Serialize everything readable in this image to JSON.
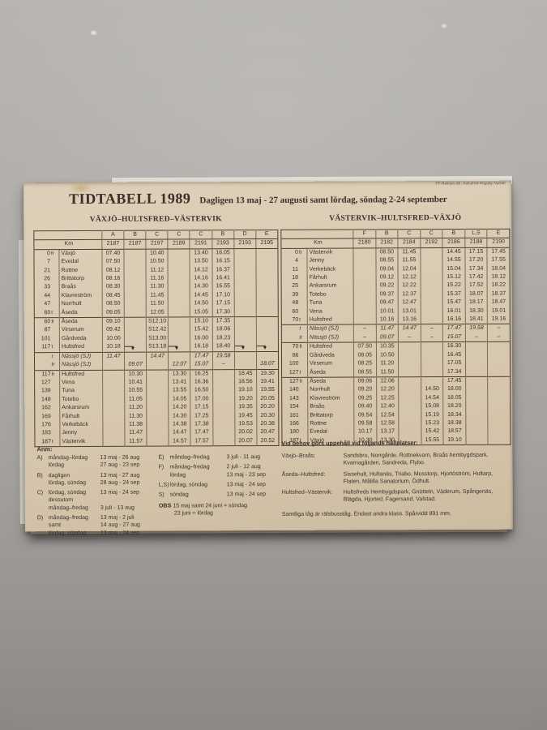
{
  "card": {
    "credit": "FF-Reklam AB, Hultsfred-Högsby Nyckel",
    "title": "TIDTABELL 1989",
    "subtitle": "Dagligen 13 maj - 27 augusti samt lördag, söndag 2-24 september"
  },
  "left_table": {
    "title": "VÄXJÖ–HULTSFRED–VÄSTERVIK",
    "km_label": "Km",
    "letters": [
      "A",
      "B",
      "C",
      "C",
      "C",
      "B",
      "D",
      "E"
    ],
    "trains": [
      "2187",
      "2187",
      "2197",
      "2189",
      "2191",
      "2193",
      "2193",
      "2195"
    ],
    "sections": [
      {
        "italic": false,
        "rows": [
          {
            "km": "0",
            "ft": "fr",
            "name": "Växjö",
            "times": [
              "07.40",
              "",
              "10.40",
              "",
              "13.40",
              "16.05",
              "",
              ""
            ]
          },
          {
            "km": "7",
            "ft": "",
            "name": "Evedal",
            "times": [
              "07.50",
              "",
              "10.50",
              "",
              "13.50",
              "16.15",
              "",
              ""
            ]
          },
          {
            "km": "21",
            "ft": "",
            "name": "Rottne",
            "times": [
              "08.12",
              "",
              "11.12",
              "",
              "14.12",
              "16.37",
              "",
              ""
            ]
          },
          {
            "km": "26",
            "ft": "",
            "name": "Brittatorp",
            "times": [
              "08.16",
              "",
              "11.16",
              "",
              "14.16",
              "16.41",
              "",
              ""
            ]
          },
          {
            "km": "33",
            "ft": "",
            "name": "Braås",
            "times": [
              "08.30",
              "",
              "11.30",
              "",
              "14.30",
              "16.55",
              "",
              ""
            ]
          },
          {
            "km": "44",
            "ft": "",
            "name": "Klavreström",
            "times": [
              "08.45",
              "",
              "11.45",
              "",
              "14.45",
              "17.10",
              "",
              ""
            ]
          },
          {
            "km": "47",
            "ft": "",
            "name": "Norrhult",
            "times": [
              "08.50",
              "",
              "11.50",
              "",
              "14.50",
              "17.15",
              "",
              ""
            ]
          },
          {
            "km": "60",
            "ft": "t",
            "name": "Åseda",
            "times": [
              "09.05",
              "",
              "12.05",
              "",
              "15.05",
              "17.30",
              "",
              ""
            ]
          }
        ]
      },
      {
        "italic": false,
        "rows": [
          {
            "km": "60",
            "ft": "fr",
            "name": "Åseda",
            "times": [
              "09.10",
              "",
              "S12.10",
              "",
              "15.10",
              "17.35",
              "",
              ""
            ]
          },
          {
            "km": "87",
            "ft": "",
            "name": "Virserum",
            "times": [
              "09.42",
              "",
              "S12.42",
              "",
              "15.42",
              "18.06",
              "",
              ""
            ]
          },
          {
            "km": "101",
            "ft": "",
            "name": "Gårdveda",
            "times": [
              "10.00",
              "",
              "S13.00",
              "",
              "16.00",
              "18.23",
              "",
              ""
            ]
          },
          {
            "km": "117",
            "ft": "t",
            "name": "Hultsfred",
            "times": [
              "10.18",
              "ARW",
              "S13.18",
              "ARW",
              "16.18",
              "18.40",
              "ARW",
              "ARW"
            ]
          }
        ]
      },
      {
        "italic": true,
        "rows": [
          {
            "km": "",
            "ft": "t",
            "name": "Nässjö (SJ)",
            "times": [
              "11.47",
              "",
              "14.47",
              "",
              "17.47",
              "19.58",
              "",
              ""
            ]
          },
          {
            "km": "",
            "ft": "fr",
            "name": "Nässjö (SJ)",
            "times": [
              "",
              "09.07",
              "",
              "12.07",
              "15.07",
              "–",
              "",
              "18.07"
            ]
          }
        ]
      },
      {
        "italic": false,
        "rows": [
          {
            "km": "117",
            "ft": "fr",
            "name": "Hultsfred",
            "times": [
              "",
              "10.30",
              "",
              "13.30",
              "16.25",
              "",
              "18.45",
              "19.30"
            ]
          },
          {
            "km": "127",
            "ft": "",
            "name": "Vena",
            "times": [
              "",
              "10.41",
              "",
              "13.41",
              "16.36",
              "",
              "18.56",
              "19.41"
            ]
          },
          {
            "km": "139",
            "ft": "",
            "name": "Tuna",
            "times": [
              "",
              "10.55",
              "",
              "13.55",
              "16.50",
              "",
              "19.10",
              "19.55"
            ]
          },
          {
            "km": "148",
            "ft": "",
            "name": "Totebo",
            "times": [
              "",
              "11.05",
              "",
              "14.05",
              "17.00",
              "",
              "19.20",
              "20.05"
            ]
          },
          {
            "km": "162",
            "ft": "",
            "name": "Ankarsrum",
            "times": [
              "",
              "11.20",
              "",
              "14.20",
              "17.15",
              "",
              "19.35",
              "20.20"
            ]
          },
          {
            "km": "169",
            "ft": "",
            "name": "Fårhult",
            "times": [
              "",
              "11.30",
              "",
              "14.30",
              "17.25",
              "",
              "19.45",
              "20.30"
            ]
          },
          {
            "km": "176",
            "ft": "",
            "name": "Verkebäck",
            "times": [
              "",
              "11.38",
              "",
              "14.38",
              "17.38",
              "",
              "19.53",
              "20.38"
            ]
          },
          {
            "km": "183",
            "ft": "",
            "name": "Jenny",
            "times": [
              "",
              "11.47",
              "",
              "14.47",
              "17.47",
              "",
              "20.02",
              "20.47"
            ]
          },
          {
            "km": "187",
            "ft": "t",
            "name": "Västervik",
            "times": [
              "",
              "11.57",
              "",
              "14.57",
              "17.57",
              "",
              "20.07",
              "20.52"
            ]
          }
        ]
      }
    ]
  },
  "right_table": {
    "title": "VÄSTERVIK–HULTSFRED–VÄXJÖ",
    "km_label": "Km",
    "letters": [
      "F",
      "B",
      "C",
      "C",
      "B",
      "L,S",
      "E"
    ],
    "trains": [
      "2180",
      "2182",
      "2184",
      "2192",
      "2186",
      "2188",
      "2190"
    ],
    "sections": [
      {
        "italic": false,
        "rows": [
          {
            "km": "0",
            "ft": "fr",
            "name": "Västervik",
            "times": [
              "",
              "08.50",
              "11.45",
              "",
              "14.45",
              "17.15",
              "17.45"
            ]
          },
          {
            "km": "4",
            "ft": "",
            "name": "Jenny",
            "times": [
              "",
              "08.55",
              "11.55",
              "",
              "14.55",
              "17.20",
              "17.55"
            ]
          },
          {
            "km": "11",
            "ft": "",
            "name": "Verkebäck",
            "times": [
              "",
              "09.04",
              "12.04",
              "",
              "15.04",
              "17.34",
              "18.04"
            ]
          },
          {
            "km": "18",
            "ft": "",
            "name": "Fårhult",
            "times": [
              "",
              "09.12",
              "12.12",
              "",
              "15.12",
              "17.42",
              "18.12"
            ]
          },
          {
            "km": "25",
            "ft": "",
            "name": "Ankarsrum",
            "times": [
              "",
              "09.22",
              "12.22",
              "",
              "15.22",
              "17.52",
              "18.22"
            ]
          },
          {
            "km": "39",
            "ft": "",
            "name": "Totebo",
            "times": [
              "",
              "09.37",
              "12.37",
              "",
              "15.37",
              "18.07",
              "18.37"
            ]
          },
          {
            "km": "48",
            "ft": "",
            "name": "Tuna",
            "times": [
              "",
              "09.47",
              "12.47",
              "",
              "15.47",
              "18.17",
              "18.47"
            ]
          },
          {
            "km": "60",
            "ft": "",
            "name": "Vena",
            "times": [
              "",
              "10.01",
              "13.01",
              "",
              "16.01",
              "18.30",
              "19.01"
            ]
          },
          {
            "km": "70",
            "ft": "t",
            "name": "Hultsfred",
            "times": [
              "",
              "10.16",
              "13.16",
              "",
              "16.16",
              "18.41",
              "19.16"
            ]
          }
        ]
      },
      {
        "italic": true,
        "rows": [
          {
            "km": "",
            "ft": "t",
            "name": "Nässjö (SJ)",
            "times": [
              "–",
              "11.47",
              "14.47",
              "–",
              "17.47",
              "19.58",
              "–"
            ]
          },
          {
            "km": "",
            "ft": "fr",
            "name": "Nässjö (SJ)",
            "times": [
              "–",
              "09.07",
              "–",
              "–",
              "15.07",
              "–",
              "–"
            ]
          }
        ]
      },
      {
        "italic": false,
        "rows": [
          {
            "km": "70",
            "ft": "fr",
            "name": "Hultsfred",
            "times": [
              "07.50",
              "10.35",
              "",
              "",
              "16.30",
              "",
              ""
            ]
          },
          {
            "km": "86",
            "ft": "",
            "name": "Gårdveda",
            "times": [
              "08.05",
              "10.50",
              "",
              "",
              "16.45",
              "",
              ""
            ]
          },
          {
            "km": "100",
            "ft": "",
            "name": "Virserum",
            "times": [
              "08.25",
              "11.20",
              "",
              "",
              "17.05",
              "",
              ""
            ]
          },
          {
            "km": "127",
            "ft": "t",
            "name": "Åseda",
            "times": [
              "08.55",
              "11.50",
              "",
              "",
              "17.34",
              "",
              ""
            ]
          }
        ]
      },
      {
        "italic": false,
        "rows": [
          {
            "km": "127",
            "ft": "fr",
            "name": "Åseda",
            "times": [
              "09.06",
              "12.06",
              "",
              "",
              "17.45",
              "",
              ""
            ]
          },
          {
            "km": "140",
            "ft": "",
            "name": "Norrhult",
            "times": [
              "09.20",
              "12.20",
              "",
              "14.50",
              "18.00",
              "",
              ""
            ]
          },
          {
            "km": "143",
            "ft": "",
            "name": "Klavreström",
            "times": [
              "09.25",
              "12.25",
              "",
              "14.54",
              "18.05",
              "",
              ""
            ]
          },
          {
            "km": "154",
            "ft": "",
            "name": "Braås",
            "times": [
              "09.40",
              "12.40",
              "",
              "15.08",
              "18.20",
              "",
              ""
            ]
          },
          {
            "km": "161",
            "ft": "",
            "name": "Brittatorp",
            "times": [
              "09.54",
              "12.54",
              "",
              "15.19",
              "18.34",
              "",
              ""
            ]
          },
          {
            "km": "166",
            "ft": "",
            "name": "Rottne",
            "times": [
              "09.58",
              "12.58",
              "",
              "15.23",
              "18.38",
              "",
              ""
            ]
          },
          {
            "km": "180",
            "ft": "",
            "name": "Evedal",
            "times": [
              "10.17",
              "13.17",
              "",
              "15.42",
              "18.57",
              "",
              ""
            ]
          },
          {
            "km": "187",
            "ft": "t",
            "name": "Växjö",
            "times": [
              "10.30",
              "13.30",
              "",
              "15.55",
              "19.10",
              "",
              ""
            ]
          }
        ]
      }
    ]
  },
  "notes": {
    "anm_heading": "Anm:",
    "anm_col1": [
      {
        "letter": "A)",
        "lines": [
          {
            "d": "måndag–lördag",
            "v": "13 maj - 26 aug"
          },
          {
            "d": "lördag",
            "v": "27 aug - 23 sep"
          }
        ]
      },
      {
        "letter": "B)",
        "lines": [
          {
            "d": "dagligen",
            "v": "13 maj - 27 aug"
          },
          {
            "d": "lördag, söndag",
            "v": "28 aug - 24 sep"
          }
        ]
      },
      {
        "letter": "C)",
        "lines": [
          {
            "d": "lördag, söndag",
            "v": "13 maj - 24 sep"
          },
          {
            "d": "dessutom",
            "v": ""
          },
          {
            "d": "måndag–fredag",
            "v": "3 juli - 13 aug"
          }
        ]
      },
      {
        "letter": "D)",
        "lines": [
          {
            "d": "måndag–fredag",
            "v": "13 maj - 2 juli"
          },
          {
            "d": "samt",
            "v": "14 aug - 27 aug"
          },
          {
            "d": "lördag, söndag",
            "v": "13 maj - 24 sep"
          }
        ]
      }
    ],
    "anm_col2": [
      {
        "letter": "E)",
        "lines": [
          {
            "d": "måndag–fredag",
            "v": "3 juli - 11 aug"
          }
        ]
      },
      {
        "letter": "F)",
        "lines": [
          {
            "d": "måndag–fredag",
            "v": "2 juli - 12 aug"
          },
          {
            "d": "lördag",
            "v": "13 maj - 23 sep"
          }
        ]
      },
      {
        "letter": "L,S)",
        "lines": [
          {
            "d": "lördag, söndag",
            "v": "13 maj - 24 sep"
          }
        ]
      },
      {
        "letter": "S)",
        "lines": [
          {
            "d": "söndag",
            "v": "13 maj - 24 sep"
          }
        ]
      }
    ],
    "obs_label": "OBS",
    "obs_lines": [
      "15 maj samt 24 juni = söndag",
      "23 juni = lördag"
    ],
    "stops_heading": "Vid behov görs uppehåll vid följande hållplatser:",
    "stops": [
      {
        "label": "Växjö–Braås:",
        "text": "Sandsbro, Norrgårde, Rottnekvarn, Braås hembygdspark, Kvarnagården, Sandreda, Flybo."
      },
      {
        "label": "Åseda–Hultsfred:",
        "text": "Sissehult, Hultanäs, Triabo, Mosstorp, Hjortöström, Hultarp, Flaten, Målilla Sanatorium, Ödhult."
      },
      {
        "label": "Hultsfred–Västervik:",
        "text": "Hultsfreds Hembygdspark, Gnötteln, Väderum, Spångenäs, Blägda, Hjorted, Fagersand, Valstad."
      }
    ],
    "footer": "Samtliga tåg är rälsbusståg. Endast andra klass. Spårvidd 891 mm."
  }
}
